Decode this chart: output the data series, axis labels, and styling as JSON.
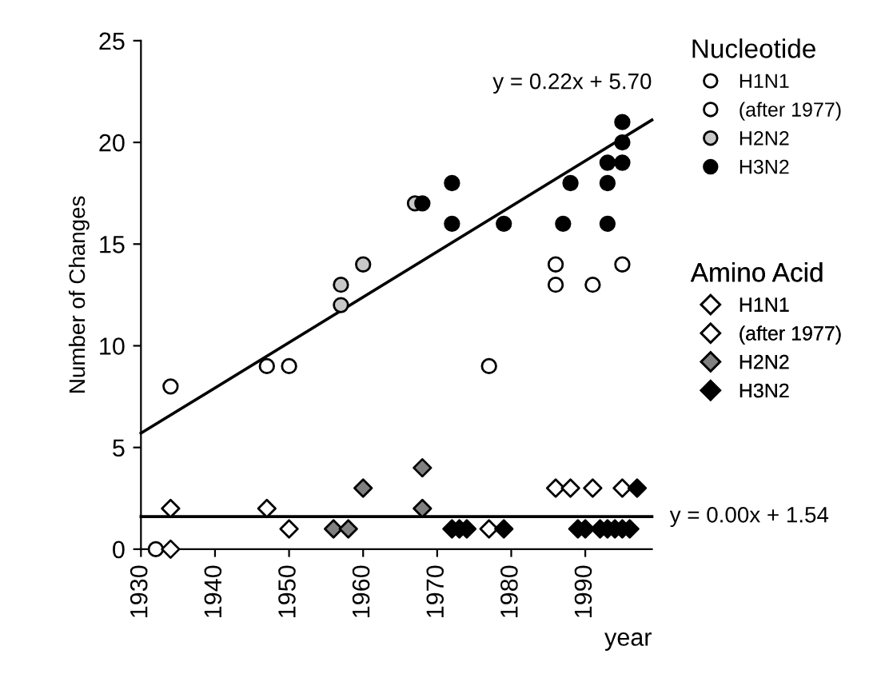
{
  "chart_data": {
    "type": "scatter",
    "xlabel": "year",
    "ylabel": "Number of Changes",
    "legend_title": "Nucleotide",
    "legend": "right",
    "grid": false,
    "xlim": [
      1930,
      1999
    ],
    "xticks": [
      1930,
      1940,
      1950,
      1960,
      1970,
      1980,
      1990
    ],
    "ylim": [
      0,
      25
    ],
    "yticks": [
      0,
      5,
      10,
      15,
      20,
      25
    ],
    "annotations": [
      {
        "text": "y = 0.22x + 5.70",
        "x": 1999,
        "y": 21.1
      },
      {
        "text": "y = 0.00x + 1.54",
        "x": 1999,
        "y": 1.6
      },
      "Amino Acid"
    ],
    "series": [
      {
        "name": "H1N1",
        "color": "#ffffff",
        "marker": "circle",
        "x": [
          1932,
          1934,
          1947,
          1950
        ],
        "values": [
          0,
          8,
          9,
          9
        ]
      },
      {
        "name": "(after 1977)",
        "color": "#ffffff",
        "marker": "circle",
        "x": [
          1977,
          1986,
          1986,
          1991,
          1995
        ],
        "values": [
          9,
          14,
          13,
          13,
          14
        ]
      },
      {
        "name": "H2N2",
        "color": "#c8c8c8",
        "marker": "circle",
        "x": [
          1957,
          1957,
          1960,
          1967
        ],
        "values": [
          12,
          13,
          14,
          17
        ]
      },
      {
        "name": "H3N2",
        "color": "#000000",
        "marker": "circle",
        "x": [
          1968,
          1972,
          1972,
          1979,
          1988,
          1987,
          1993,
          1993,
          1993,
          1995,
          1995,
          1995
        ],
        "values": [
          17,
          18,
          16,
          16,
          18,
          16,
          19,
          18,
          16,
          21,
          20,
          19
        ]
      },
      {
        "name": "H1N1",
        "color": "#ffffff",
        "marker": "diamond",
        "x": [
          1934,
          1934,
          1947,
          1950
        ],
        "values": [
          2,
          0,
          2,
          1
        ]
      },
      {
        "name": "(after 1977)",
        "color": "#ffffff",
        "marker": "diamond",
        "x": [
          1977,
          1986,
          1988,
          1991,
          1995
        ],
        "values": [
          1,
          3,
          3,
          3,
          3
        ]
      },
      {
        "name": "H2N2",
        "color": "#808080",
        "marker": "diamond",
        "x": [
          1956,
          1958,
          1960,
          1968,
          1968
        ],
        "values": [
          1,
          1,
          3,
          4,
          2
        ]
      },
      {
        "name": "H3N2",
        "color": "#000000",
        "marker": "diamond",
        "x": [
          1972,
          1973,
          1974,
          1979,
          1989,
          1990,
          1992,
          1993,
          1994,
          1995,
          1996,
          1997
        ],
        "values": [
          1,
          1,
          1,
          1,
          1,
          1,
          1,
          1,
          1,
          1,
          1,
          3
        ]
      },
      {
        "type": "line",
        "color": "#000000",
        "marker": "none",
        "x": [
          1930,
          1999
        ],
        "values": [
          5.7,
          21.1
        ]
      },
      {
        "type": "line",
        "color": "#000000",
        "marker": "none",
        "x": [
          1930,
          1999
        ],
        "values": [
          1.6,
          1.6
        ]
      }
    ]
  }
}
